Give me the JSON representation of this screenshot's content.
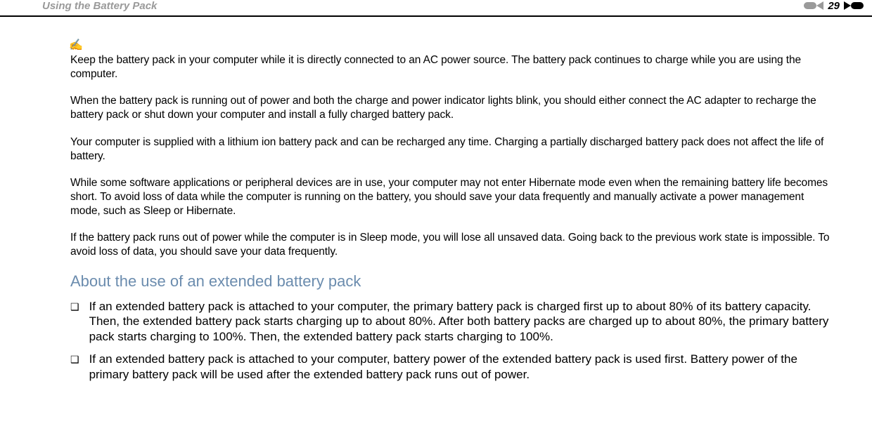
{
  "header": {
    "title": "Using the Battery Pack",
    "page_number": "29"
  },
  "colors": {
    "header_text": "#9a9a9a",
    "section_heading": "#6b8cae",
    "body_text": "#000000",
    "border": "#000000"
  },
  "note_icon": "✍",
  "paragraphs": {
    "p1": "Keep the battery pack in your computer while it is directly connected to an AC power source. The battery pack continues to charge while you are using the computer.",
    "p2": "When the battery pack is running out of power and both the charge and power indicator lights blink, you should either connect the AC adapter to recharge the battery pack or shut down your computer and install a fully charged battery pack.",
    "p3": "Your computer is supplied with a lithium ion battery pack and can be recharged any time. Charging a partially discharged battery pack does not affect the life of battery.",
    "p4": "While some software applications or peripheral devices are in use, your computer may not enter Hibernate mode even when the remaining battery life becomes short. To avoid loss of data while the computer is running on the battery, you should save your data frequently and manually activate a power management mode, such as Sleep or Hibernate.",
    "p5": "If the battery pack runs out of power while the computer is in Sleep mode, you will lose all unsaved data. Going back to the previous work state is impossible. To avoid loss of data, you should save your data frequently."
  },
  "section_heading": "About the use of an extended battery pack",
  "bullets": {
    "b1": "If an extended battery pack is attached to your computer, the primary battery pack is charged first up to about 80% of its battery capacity. Then, the extended battery pack starts charging up to about 80%. After both battery packs are charged up to about 80%, the primary battery pack starts charging to 100%. Then, the extended battery pack starts charging to 100%.",
    "b2": "If an extended battery pack is attached to your computer, battery power of the extended battery pack is used first. Battery power of the primary battery pack will be used after the extended battery pack runs out of power."
  },
  "bullet_marker": "❑"
}
